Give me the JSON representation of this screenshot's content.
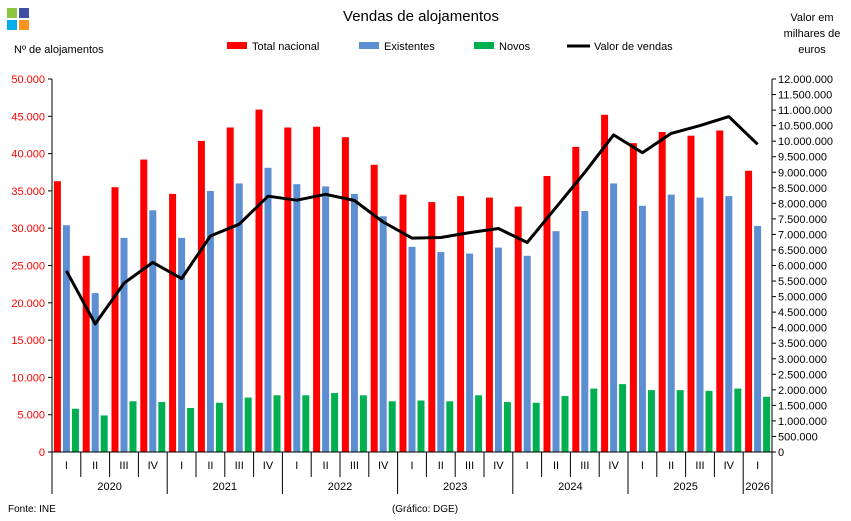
{
  "chart_data": {
    "type": "bar",
    "title": "Vendas de alojamentos",
    "ylabel_left": "Nº de alojamentos",
    "ylabel_right": [
      "Valor em",
      "milhares de",
      "euros"
    ],
    "ylim_left": [
      0,
      50000
    ],
    "ylim_right": [
      0,
      12000000
    ],
    "yticks_left": [
      "0",
      "5.000",
      "10.000",
      "15.000",
      "20.000",
      "25.000",
      "30.000",
      "35.000",
      "40.000",
      "45.000",
      "50.000"
    ],
    "yticks_right": [
      "0",
      "500.000",
      "1.000.000",
      "1.500.000",
      "2.000.000",
      "2.500.000",
      "3.000.000",
      "3.500.000",
      "4.000.000",
      "4.500.000",
      "5.000.000",
      "5.500.000",
      "6.000.000",
      "6.500.000",
      "7.000.000",
      "7.500.000",
      "8.000.000",
      "8.500.000",
      "9.000.000",
      "9.500.000",
      "10.000.000",
      "10.500.000",
      "11.000.000",
      "11.500.000",
      "12.000.000"
    ],
    "grid": false,
    "legend_position": "top",
    "categories": [
      "I",
      "II",
      "III",
      "IV",
      "I",
      "II",
      "III",
      "IV",
      "I",
      "II",
      "III",
      "IV",
      "I",
      "II",
      "III",
      "IV",
      "I",
      "II",
      "III",
      "IV",
      "I",
      "II",
      "III",
      "IV",
      "I"
    ],
    "years": [
      {
        "label": "2020",
        "count": 4
      },
      {
        "label": "2021",
        "count": 4
      },
      {
        "label": "2022",
        "count": 4
      },
      {
        "label": "2023",
        "count": 4
      },
      {
        "label": "2024",
        "count": 4
      },
      {
        "label": "2025",
        "count": 4
      },
      {
        "label": "2026",
        "count": 1
      }
    ],
    "series": [
      {
        "name": "Total nacional",
        "color": "#ff0000",
        "axis": "left",
        "values": [
          36300,
          26300,
          35500,
          39200,
          34600,
          41700,
          43500,
          45900,
          43500,
          43600,
          42200,
          38500,
          34500,
          33500,
          34300,
          34100,
          32900,
          37000,
          40900,
          45200,
          41400,
          42900,
          42400,
          43100,
          37700
        ]
      },
      {
        "name": "Existentes",
        "color": "#5b8fd1",
        "axis": "left",
        "values": [
          30400,
          21300,
          28700,
          32400,
          28700,
          35000,
          36000,
          38100,
          35900,
          35600,
          34600,
          31600,
          27500,
          26800,
          26600,
          27400,
          26300,
          29600,
          32300,
          36000,
          33000,
          34500,
          34100,
          34300,
          30300
        ]
      },
      {
        "name": "Novos",
        "color": "#00b050",
        "axis": "left",
        "values": [
          5800,
          4900,
          6800,
          6700,
          5900,
          6600,
          7300,
          7600,
          7600,
          7900,
          7600,
          6800,
          6900,
          6800,
          7600,
          6700,
          6600,
          7500,
          8500,
          9100,
          8300,
          8300,
          8200,
          8500,
          7400
        ]
      },
      {
        "name": "Valor de vendas",
        "color": "#000000",
        "axis": "right",
        "type": "line",
        "values": [
          5830000,
          4120000,
          5430000,
          6100000,
          5580000,
          6950000,
          7330000,
          8230000,
          8100000,
          8290000,
          8090000,
          7400000,
          6880000,
          6900000,
          7060000,
          7190000,
          6740000,
          7870000,
          9000000,
          10200000,
          9630000,
          10250000,
          10500000,
          10790000,
          9900000
        ]
      }
    ]
  },
  "footer": {
    "source": "Fonte:  INE",
    "credit": "(Gráfico:  DGE)"
  },
  "logo": {
    "colors": [
      "#8dc63f",
      "#3f4f9f",
      "#00aeef",
      "#f7941d"
    ]
  }
}
